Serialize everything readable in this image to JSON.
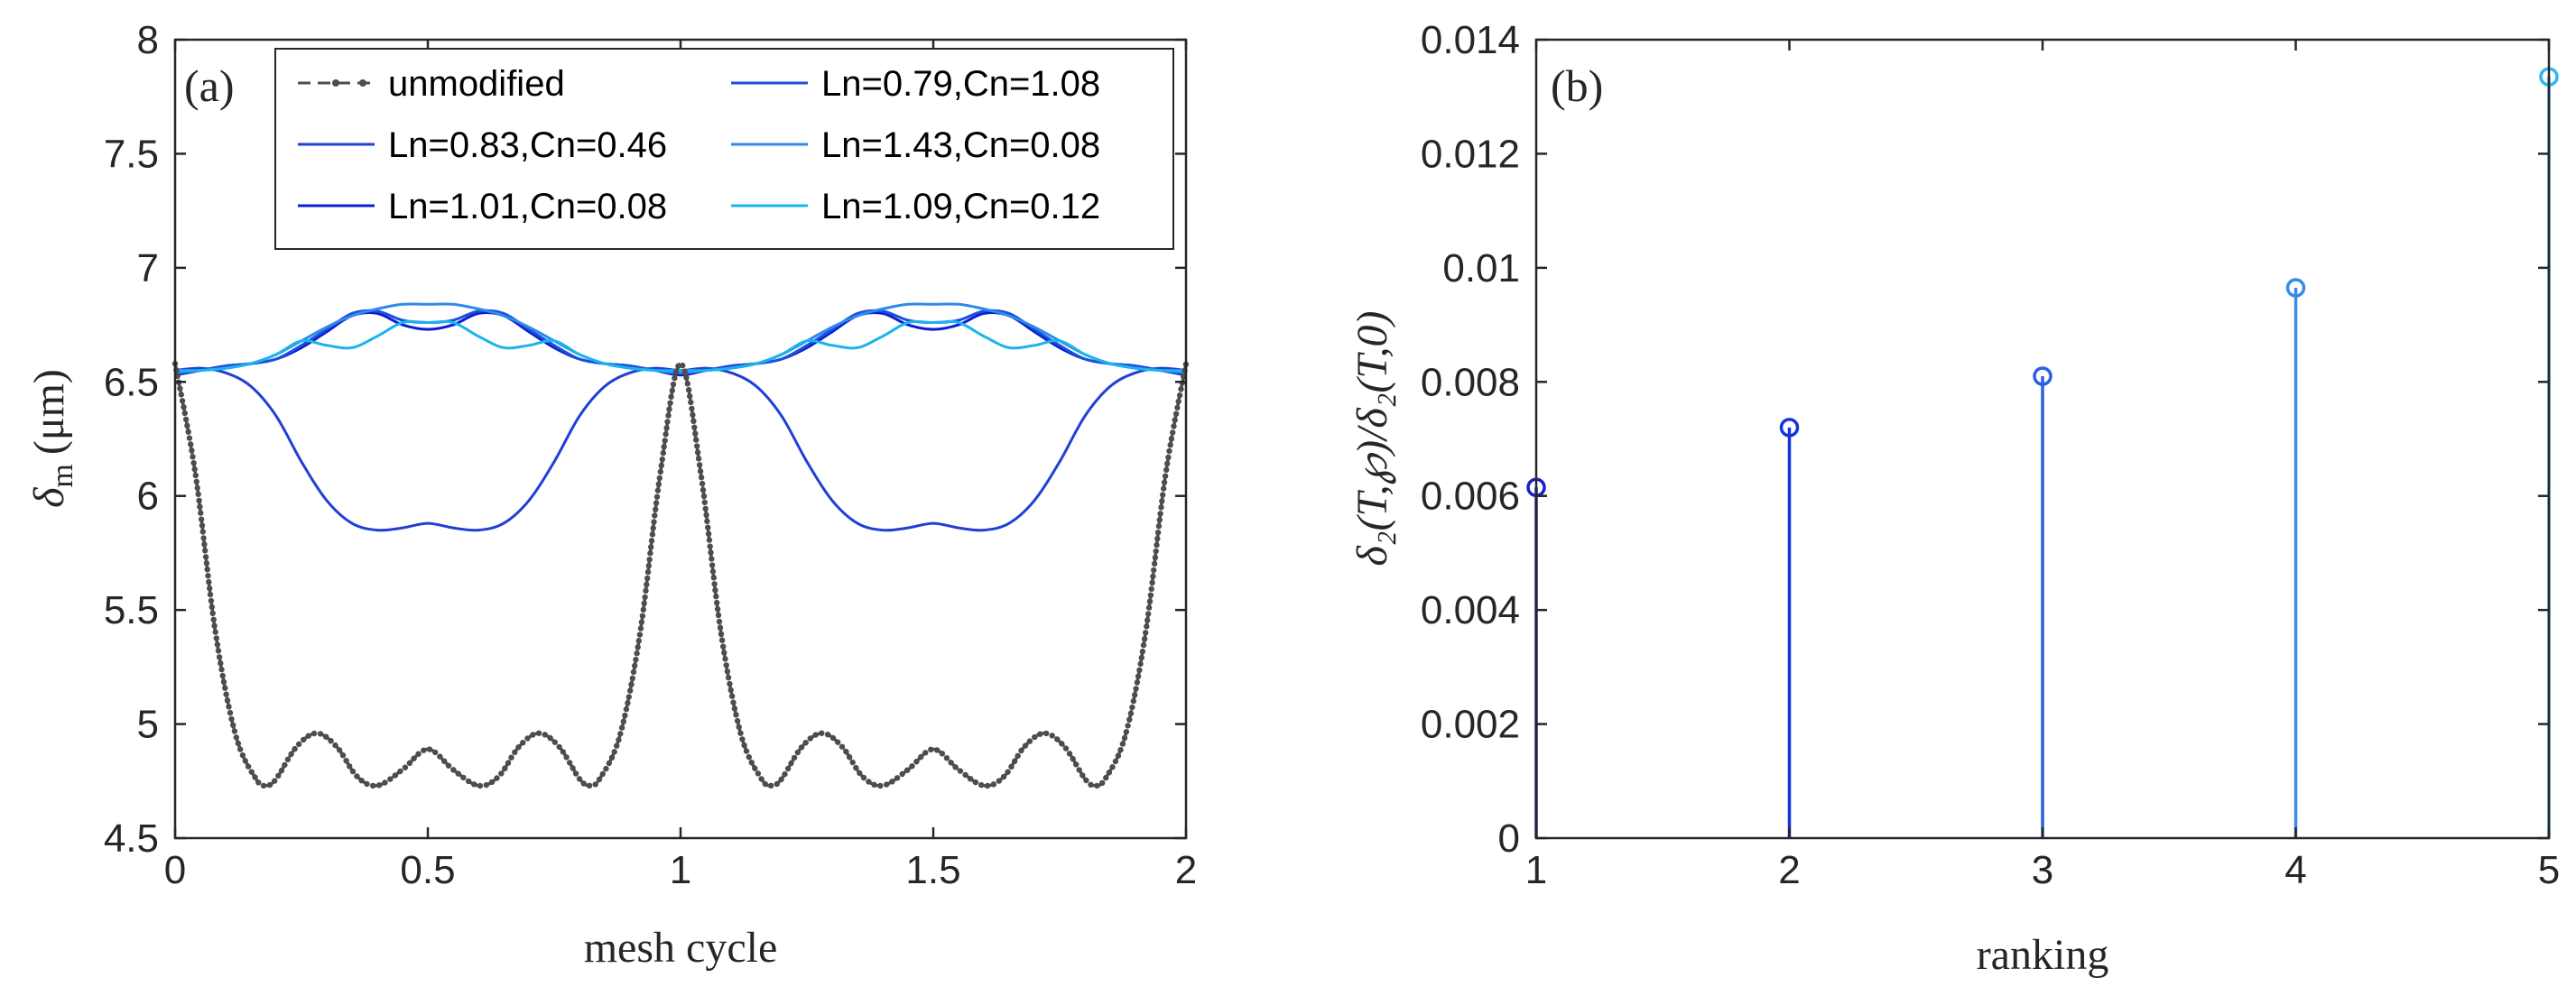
{
  "chart_data": [
    {
      "type": "line",
      "panel_label": "(a)",
      "xlabel": "mesh cycle",
      "ylabel_parts": {
        "symbol": "δ",
        "sub": "m",
        "unit": "(μm)"
      },
      "xlim": [
        0,
        2
      ],
      "ylim": [
        4.5,
        8
      ],
      "xticks": [
        "0",
        "0.5",
        "1",
        "1.5",
        "2"
      ],
      "yticks": [
        "4.5",
        "5",
        "5.5",
        "6",
        "6.5",
        "7",
        "7.5",
        "8"
      ],
      "grid": false,
      "legend_position": "top",
      "series_note": "each series is periodic with period 1 mesh cycle; points given for one period [0,1]",
      "series": [
        {
          "name": "unmodified",
          "color": "#4d4d4d",
          "style": "dashed-dot-markers",
          "x": [
            0,
            0.04,
            0.08,
            0.12,
            0.16,
            0.18,
            0.2,
            0.24,
            0.28,
            0.32,
            0.36,
            0.4,
            0.45,
            0.5,
            0.55,
            0.6,
            0.64,
            0.68,
            0.72,
            0.76,
            0.8,
            0.82,
            0.84,
            0.88,
            0.92,
            0.96,
            1
          ],
          "y": [
            6.58,
            6.1,
            5.4,
            4.95,
            4.76,
            4.73,
            4.76,
            4.9,
            4.96,
            4.9,
            4.77,
            4.73,
            4.8,
            4.89,
            4.8,
            4.73,
            4.77,
            4.9,
            4.96,
            4.9,
            4.76,
            4.73,
            4.76,
            4.95,
            5.4,
            6.1,
            6.58
          ]
        },
        {
          "name": "Ln=0.83,Cn=0.46",
          "color": "#1f3fd6",
          "style": "solid",
          "x": [
            0,
            0.05,
            0.1,
            0.15,
            0.2,
            0.25,
            0.3,
            0.35,
            0.4,
            0.45,
            0.5,
            0.55,
            0.6,
            0.65,
            0.7,
            0.75,
            0.8,
            0.85,
            0.9,
            0.95,
            1
          ],
          "y": [
            6.55,
            6.56,
            6.54,
            6.48,
            6.35,
            6.15,
            5.98,
            5.88,
            5.85,
            5.86,
            5.88,
            5.86,
            5.85,
            5.88,
            5.98,
            6.15,
            6.35,
            6.48,
            6.54,
            6.56,
            6.55
          ]
        },
        {
          "name": "Ln=1.01,Cn=0.08",
          "color": "#0a1ed0",
          "style": "solid",
          "x": [
            0,
            0.05,
            0.1,
            0.15,
            0.2,
            0.25,
            0.3,
            0.35,
            0.4,
            0.45,
            0.5,
            0.55,
            0.6,
            0.65,
            0.7,
            0.75,
            0.8,
            0.85,
            0.9,
            0.95,
            1
          ],
          "y": [
            6.53,
            6.55,
            6.57,
            6.58,
            6.6,
            6.65,
            6.72,
            6.79,
            6.8,
            6.75,
            6.73,
            6.75,
            6.8,
            6.79,
            6.72,
            6.65,
            6.6,
            6.58,
            6.57,
            6.55,
            6.53
          ]
        },
        {
          "name": "Ln=0.79,Cn=1.08",
          "color": "#1a4fe0",
          "style": "solid",
          "x": [
            0,
            0.05,
            0.1,
            0.15,
            0.2,
            0.25,
            0.3,
            0.35,
            0.4,
            0.45,
            0.5,
            0.55,
            0.6,
            0.65,
            0.7,
            0.75,
            0.8,
            0.85,
            0.9,
            0.95,
            1
          ],
          "y": [
            6.54,
            6.55,
            6.57,
            6.58,
            6.6,
            6.66,
            6.73,
            6.8,
            6.81,
            6.77,
            6.76,
            6.77,
            6.81,
            6.8,
            6.73,
            6.66,
            6.6,
            6.58,
            6.57,
            6.55,
            6.54
          ]
        },
        {
          "name": "Ln=1.43,Cn=0.08",
          "color": "#2f8ae8",
          "style": "solid",
          "x": [
            0,
            0.05,
            0.1,
            0.15,
            0.2,
            0.25,
            0.3,
            0.35,
            0.4,
            0.45,
            0.5,
            0.55,
            0.6,
            0.65,
            0.7,
            0.75,
            0.8,
            0.85,
            0.9,
            0.95,
            1
          ],
          "y": [
            6.54,
            6.55,
            6.56,
            6.58,
            6.62,
            6.68,
            6.74,
            6.79,
            6.82,
            6.84,
            6.84,
            6.84,
            6.82,
            6.79,
            6.74,
            6.68,
            6.62,
            6.58,
            6.56,
            6.55,
            6.54
          ]
        },
        {
          "name": "Ln=1.09,Cn=0.12",
          "color": "#1ab4ec",
          "style": "solid",
          "x": [
            0,
            0.05,
            0.1,
            0.15,
            0.2,
            0.25,
            0.3,
            0.35,
            0.4,
            0.45,
            0.5,
            0.55,
            0.6,
            0.65,
            0.7,
            0.75,
            0.8,
            0.85,
            0.9,
            0.95,
            1
          ],
          "y": [
            6.55,
            6.55,
            6.56,
            6.58,
            6.62,
            6.68,
            6.66,
            6.65,
            6.7,
            6.76,
            6.76,
            6.76,
            6.7,
            6.65,
            6.66,
            6.68,
            6.62,
            6.58,
            6.56,
            6.55,
            6.55
          ]
        }
      ]
    },
    {
      "type": "stem",
      "panel_label": "(b)",
      "xlabel": "ranking",
      "ylabel": "δ₂(T,℘)/δ₂(T,0)",
      "xlim": [
        1,
        5
      ],
      "ylim": [
        0,
        0.014
      ],
      "xticks": [
        "1",
        "2",
        "3",
        "4",
        "5"
      ],
      "yticks": [
        "0",
        "0.002",
        "0.004",
        "0.006",
        "0.008",
        "0.01",
        "0.012",
        "0.014"
      ],
      "grid": false,
      "points": [
        {
          "x": 1,
          "y": 0.00615,
          "color": "#1a1fc8"
        },
        {
          "x": 2,
          "y": 0.0072,
          "color": "#1535d8"
        },
        {
          "x": 3,
          "y": 0.0081,
          "color": "#2a5fe0"
        },
        {
          "x": 4,
          "y": 0.00965,
          "color": "#3a8ae6"
        },
        {
          "x": 5,
          "y": 0.01335,
          "color": "#33b6ee"
        }
      ]
    }
  ]
}
